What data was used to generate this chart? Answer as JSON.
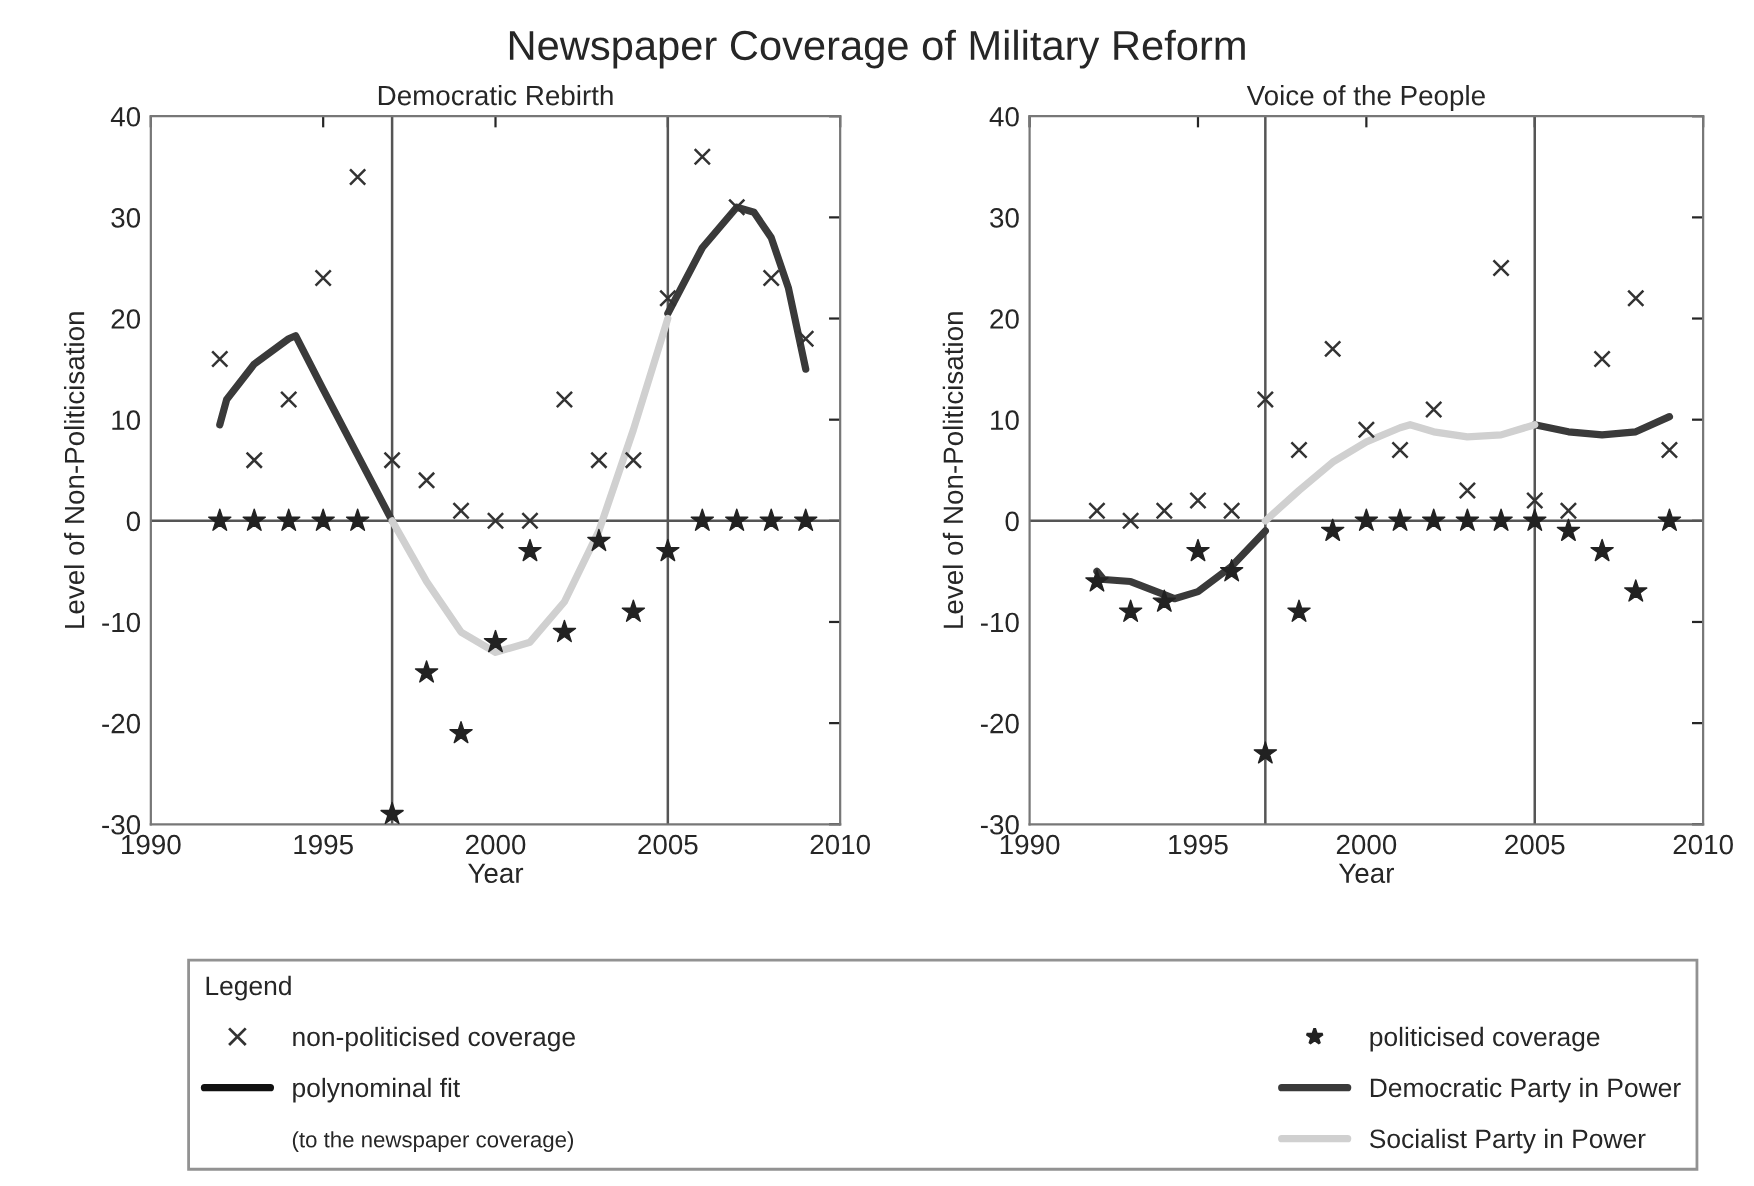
{
  "chart_data": [
    {
      "type": "scatter",
      "title": "Democratic Rebirth",
      "xlabel": "Year",
      "ylabel": "Level of Non-Politicisation",
      "xlim": [
        1990,
        2010
      ],
      "xticks": [
        1990,
        1995,
        2000,
        2005,
        2010
      ],
      "ylim": [
        -30,
        40
      ],
      "yticks": [
        -30,
        -20,
        -10,
        0,
        10,
        20,
        30,
        40
      ],
      "grid": false,
      "legend": "bottom",
      "legend_title": "Legend",
      "annotations": [
        "Newspaper Coverage of Military Reform",
        "polynominal fit",
        "(to the newspaper coverage)"
      ],
      "ref_lines": [
        {
          "axis": "x",
          "value": 1997,
          "color": "#555555"
        },
        {
          "axis": "x",
          "value": 2005,
          "color": "#555555"
        },
        {
          "axis": "y",
          "value": 0,
          "color": "#555555"
        }
      ],
      "series": [
        {
          "name": "non-politicised coverage",
          "marker": "cross",
          "color": "#333333",
          "x": [
            1992,
            1993,
            1994,
            1995,
            1996,
            1997,
            1998,
            1999,
            2000,
            2001,
            2002,
            2003,
            2004,
            2005,
            2006,
            2007,
            2008,
            2009
          ],
          "values": [
            16,
            6,
            12,
            24,
            34,
            6,
            4,
            1,
            0,
            0,
            12,
            6,
            6,
            22,
            36,
            31,
            24,
            18
          ]
        },
        {
          "name": "politicised coverage",
          "marker": "star",
          "color": "#222222",
          "x": [
            1992,
            1993,
            1994,
            1995,
            1996,
            1997,
            1998,
            1999,
            2000,
            2001,
            2002,
            2003,
            2004,
            2005,
            2006,
            2007,
            2008,
            2009
          ],
          "values": [
            0,
            0,
            0,
            0,
            0,
            -29,
            -15,
            -21,
            -12,
            -3,
            -11,
            -2,
            -9,
            -3,
            0,
            0,
            0,
            0
          ]
        },
        {
          "name": "Democratic Party in Power",
          "type": "line",
          "marker": "none",
          "color": "#3a3a3a",
          "x": [
            1992,
            1992.2,
            1993,
            1994,
            1994.2,
            1995,
            1996,
            1997,
            2001,
            2005,
            2006,
            2007,
            2007.5,
            2008,
            2008.5,
            2009
          ],
          "values": [
            9.5,
            12,
            15.5,
            18,
            18.3,
            13,
            6.5,
            0,
            null,
            20.5,
            27,
            31,
            30.5,
            28,
            23,
            15
          ]
        },
        {
          "name": "Socialist Party in Power",
          "type": "line",
          "marker": "none",
          "color": "#d0d0d0",
          "x": [
            1997,
            1998,
            1999,
            2000,
            2001,
            2002,
            2003,
            2004,
            2005
          ],
          "values": [
            0,
            -6,
            -11,
            -13,
            -12,
            -8,
            -1,
            9,
            20
          ]
        }
      ]
    },
    {
      "type": "scatter",
      "title": "Voice of the People",
      "xlabel": "Year",
      "ylabel": "Level of Non-Politicisation",
      "xlim": [
        1990,
        2010
      ],
      "xticks": [
        1990,
        1995,
        2000,
        2005,
        2010
      ],
      "ylim": [
        -30,
        40
      ],
      "yticks": [
        -30,
        -20,
        -10,
        0,
        10,
        20,
        30,
        40
      ],
      "grid": false,
      "ref_lines": [
        {
          "axis": "x",
          "value": 1997,
          "color": "#555555"
        },
        {
          "axis": "x",
          "value": 2005,
          "color": "#555555"
        },
        {
          "axis": "y",
          "value": 0,
          "color": "#555555"
        }
      ],
      "series": [
        {
          "marker": "cross",
          "color": "#333333",
          "x": [
            1992,
            1993,
            1994,
            1995,
            1996,
            1997,
            1998,
            1999,
            2000,
            2001,
            2002,
            2003,
            2004,
            2005,
            2006,
            2007,
            2008,
            2009
          ],
          "values": [
            1,
            0,
            1,
            2,
            1,
            12,
            7,
            17,
            9,
            7,
            11,
            3,
            25,
            2,
            1,
            16,
            22,
            7
          ]
        },
        {
          "marker": "star",
          "color": "#222222",
          "x": [
            1992,
            1993,
            1994,
            1995,
            1996,
            1997,
            1998,
            1999,
            2000,
            2001,
            2002,
            2003,
            2004,
            2005,
            2006,
            2007,
            2008,
            2009
          ],
          "values": [
            -6,
            -9,
            -8,
            -3,
            -5,
            -23,
            -9,
            -1,
            0,
            0,
            0,
            0,
            0,
            0,
            -1,
            -3,
            -7,
            0
          ]
        },
        {
          "type": "line",
          "marker": "none",
          "color": "#3a3a3a",
          "x": [
            1992,
            1992.2,
            1993,
            1994,
            1994.3,
            1995,
            1996,
            1997,
            2001,
            2005,
            2006,
            2007,
            2008,
            2009
          ],
          "values": [
            -5,
            -5.8,
            -6,
            -7.3,
            -7.7,
            -7,
            -4.5,
            -1,
            null,
            9.5,
            8.8,
            8.5,
            8.8,
            10.3
          ]
        },
        {
          "type": "line",
          "marker": "none",
          "color": "#d0d0d0",
          "x": [
            1997,
            1998,
            1999,
            2000,
            2001,
            2001.3,
            2002,
            2003,
            2004,
            2005
          ],
          "values": [
            0,
            3,
            5.8,
            7.8,
            9.2,
            9.5,
            8.8,
            8.3,
            8.5,
            9.5
          ]
        }
      ]
    }
  ]
}
